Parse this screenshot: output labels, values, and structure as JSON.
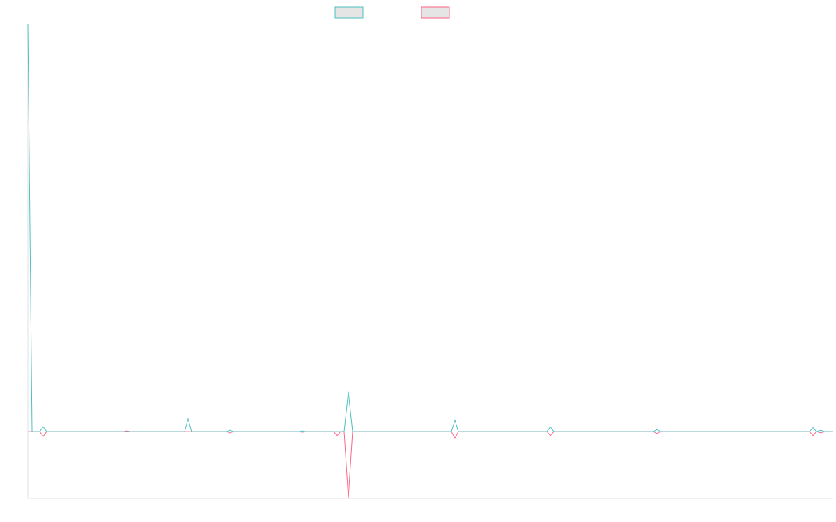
{
  "chart_data": {
    "type": "line",
    "x": [
      0,
      6,
      17,
      22,
      27,
      137,
      142,
      147,
      225,
      230,
      235,
      285,
      290,
      295,
      389,
      394,
      399,
      439,
      444,
      449,
      454,
      460,
      466,
      608,
      613,
      618,
      745,
      750,
      755,
      898,
      903,
      908,
      1122,
      1127,
      1132,
      1138,
      1144,
      1155
    ],
    "series": [
      {
        "color": "#4bc0c0",
        "values": [
          610,
          0,
          0,
          7,
          0,
          0,
          0,
          0,
          0,
          19,
          0,
          0,
          2,
          0,
          0,
          1,
          0,
          0,
          0,
          0,
          0,
          60,
          0,
          0,
          17,
          0,
          0,
          7,
          0,
          0,
          3,
          0,
          0,
          6,
          0,
          2,
          0,
          0
        ]
      },
      {
        "color": "#ff6384",
        "values": [
          0,
          0,
          0,
          -7,
          0,
          0,
          1,
          0,
          0,
          0,
          0,
          0,
          -2,
          0,
          0,
          -1,
          0,
          0,
          -6,
          0,
          0,
          -100,
          0,
          0,
          -10,
          0,
          0,
          -6,
          0,
          0,
          -3,
          0,
          0,
          -6,
          0,
          -2,
          0,
          0
        ]
      }
    ],
    "xlim": [
      0,
      1155
    ],
    "ylim": [
      -100,
      610
    ]
  }
}
